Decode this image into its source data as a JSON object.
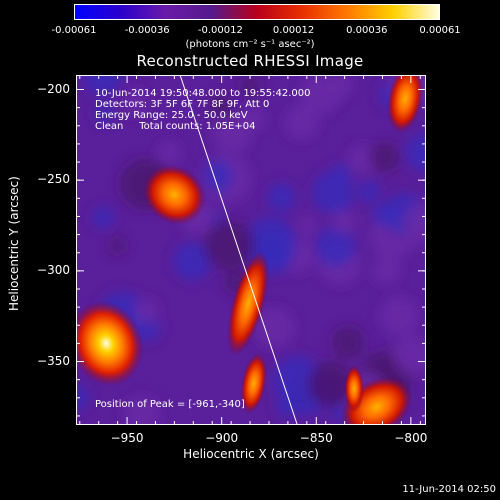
{
  "colorbar": {
    "ticks": [
      "-0.00061",
      "-0.00036",
      "-0.00012",
      "0.00012",
      "0.00036",
      "0.00061"
    ],
    "units_label": "(photons cm⁻² s⁻¹ asec⁻²)",
    "colors": [
      "#0000ff",
      "#2a00cc",
      "#6a1aa8",
      "#551a8b",
      "#b8001c",
      "#e83000",
      "#ff7a00",
      "#ffd000",
      "#ffffe0"
    ]
  },
  "title": "Reconstructed RHESSI Image",
  "overlay": {
    "time_range": "10-Jun-2014 19:50:48.000 to 19:55:42.000",
    "detectors": "Detectors: 3F 5F 6F 7F 8F 9F, Att 0",
    "energy": "Energy Range: 25.0 - 50.0 keV",
    "clean": "Clean     Total counts: 1.05E+04",
    "peak": "Position of Peak = [-961,-340]"
  },
  "footer_timestamp": "11-Jun-2014 02:50",
  "chart_data": {
    "type": "heatmap",
    "title": "Reconstructed RHESSI Image",
    "xlabel": "Heliocentric X (arcsec)",
    "ylabel": "Heliocentric Y (arcsec)",
    "xlim": [
      -977,
      -792
    ],
    "ylim": [
      -385,
      -192
    ],
    "xticks": [
      -950,
      -900,
      -850,
      -800
    ],
    "yticks": [
      -200,
      -250,
      -300,
      -350
    ],
    "colorbar_range": [
      -0.00061,
      0.00061
    ],
    "peak": [
      -961,
      -340
    ],
    "sources": [
      {
        "x": -961,
        "y": -340,
        "intensity": 1.0
      },
      {
        "x": -925,
        "y": -258,
        "intensity": 0.72
      },
      {
        "x": -886,
        "y": -318,
        "intensity": 0.7
      },
      {
        "x": -883,
        "y": -362,
        "intensity": 0.55
      },
      {
        "x": -818,
        "y": -375,
        "intensity": 0.8
      },
      {
        "x": -803,
        "y": -205,
        "intensity": 0.7
      },
      {
        "x": -830,
        "y": -365,
        "intensity": 0.45
      }
    ],
    "limb_line": [
      [
        -922,
        -192
      ],
      [
        -860,
        -385
      ]
    ]
  }
}
